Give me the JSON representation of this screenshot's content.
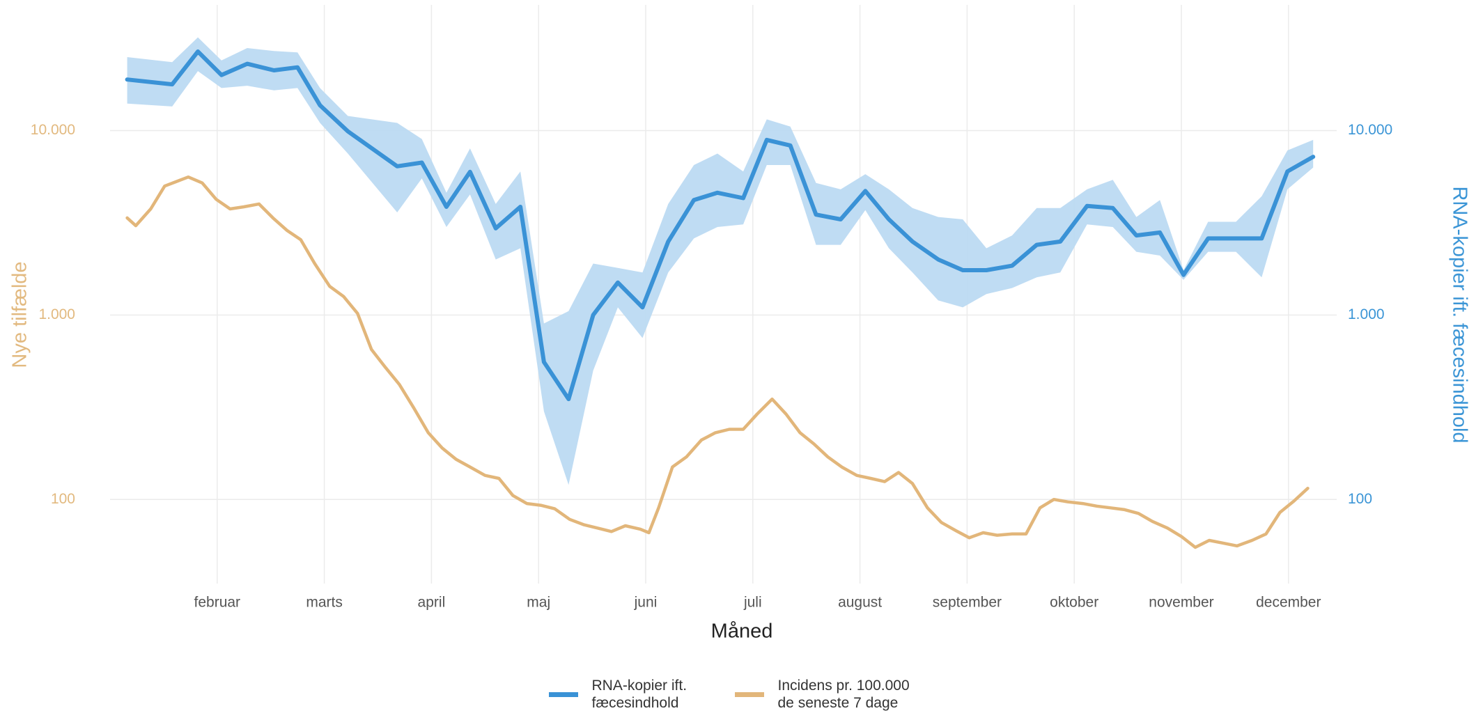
{
  "chart_data": {
    "type": "line",
    "x_label": "Måned",
    "y_label": "Nye tilfælde",
    "y2_label": "RNA-kopier ift. fæcesindhold",
    "log_scale": true,
    "grid": true,
    "legend": "bottom",
    "xlim": [
      1.0,
      12.45
    ],
    "xticks": [
      {
        "value": 2,
        "label": "februar"
      },
      {
        "value": 3,
        "label": "marts"
      },
      {
        "value": 4,
        "label": "april"
      },
      {
        "value": 5,
        "label": "maj"
      },
      {
        "value": 6,
        "label": "juni"
      },
      {
        "value": 7,
        "label": "juli"
      },
      {
        "value": 8,
        "label": "august"
      },
      {
        "value": 9,
        "label": "september"
      },
      {
        "value": 10,
        "label": "oktober"
      },
      {
        "value": 11,
        "label": "november"
      },
      {
        "value": 12,
        "label": "december"
      }
    ],
    "ylim": [
      35,
      48000
    ],
    "yticks": [
      100,
      {
        "value": 1000,
        "label": "1.000"
      },
      {
        "value": 10000,
        "label": "10.000"
      }
    ],
    "y2lim": [
      35,
      48000
    ],
    "y2ticks": [
      100,
      {
        "value": 1000,
        "label": "1.000"
      },
      {
        "value": 10000,
        "label": "10.000"
      }
    ],
    "y_color": "#e2b97f",
    "y2_color": "#3b95d6",
    "band_color": "#bcdaf2",
    "series": [
      {
        "name": "RNA-kopier ift. fæcesindhold",
        "color": "#3a92d6",
        "axis": "y2",
        "x": [
          1.16,
          1.58,
          1.82,
          2.04,
          2.28,
          2.53,
          2.75,
          2.96,
          3.22,
          3.68,
          3.91,
          4.14,
          4.36,
          4.6,
          4.83,
          5.05,
          5.28,
          5.51,
          5.74,
          5.97,
          6.21,
          6.45,
          6.67,
          6.91,
          7.13,
          7.35,
          7.59,
          7.82,
          8.05,
          8.27,
          8.49,
          8.73,
          8.96,
          9.18,
          9.42,
          9.65,
          9.87,
          10.12,
          10.36,
          10.58,
          10.8,
          11.02,
          11.25,
          11.51,
          11.75,
          11.99,
          12.23
        ],
        "values": [
          18900,
          17800,
          26800,
          20000,
          23000,
          21200,
          22000,
          13700,
          9900,
          6400,
          6700,
          3860,
          5970,
          2950,
          3860,
          556,
          350,
          1000,
          1500,
          1100,
          2500,
          4200,
          4600,
          4300,
          8900,
          8300,
          3500,
          3300,
          4700,
          3300,
          2500,
          2000,
          1750,
          1750,
          1850,
          2400,
          2500,
          3900,
          3800,
          2700,
          2800,
          1650,
          2600,
          2600,
          2600,
          6000,
          7200
        ],
        "lower": [
          14000,
          13500,
          21000,
          17000,
          17500,
          16500,
          17000,
          11000,
          7500,
          3600,
          5500,
          3000,
          4500,
          2000,
          2300,
          300,
          120,
          500,
          1100,
          750,
          1700,
          2600,
          3000,
          3100,
          6500,
          6500,
          2400,
          2400,
          3700,
          2300,
          1700,
          1200,
          1100,
          1300,
          1400,
          1600,
          1700,
          3100,
          3000,
          2200,
          2100,
          1550,
          2200,
          2200,
          1600,
          4800,
          6300
        ],
        "upper": [
          25000,
          23500,
          32000,
          24000,
          28000,
          27000,
          26500,
          17000,
          12000,
          11000,
          9000,
          4600,
          8000,
          4000,
          6000,
          900,
          1050,
          1900,
          1800,
          1700,
          4000,
          6500,
          7500,
          6000,
          11500,
          10500,
          5200,
          4800,
          5800,
          4800,
          3800,
          3400,
          3300,
          2300,
          2700,
          3800,
          3800,
          4800,
          5400,
          3400,
          4200,
          1750,
          3200,
          3200,
          4400,
          7800,
          8900
        ]
      },
      {
        "name": "Incidens pr. 100.000 de seneste 7 dage",
        "color": "#e2b67a",
        "axis": "y",
        "x": [
          1.16,
          1.24,
          1.38,
          1.51,
          1.73,
          1.86,
          1.99,
          2.12,
          2.25,
          2.39,
          2.52,
          2.65,
          2.78,
          2.91,
          3.05,
          3.18,
          3.31,
          3.44,
          3.57,
          3.7,
          3.84,
          3.97,
          4.1,
          4.23,
          4.36,
          4.5,
          4.63,
          4.76,
          4.89,
          5.02,
          5.15,
          5.29,
          5.42,
          5.55,
          5.68,
          5.81,
          5.95,
          6.03,
          6.12,
          6.25,
          6.38,
          6.52,
          6.65,
          6.78,
          6.91,
          7.04,
          7.18,
          7.31,
          7.44,
          7.57,
          7.7,
          7.83,
          7.97,
          8.1,
          8.23,
          8.36,
          8.49,
          8.63,
          8.76,
          8.89,
          9.02,
          9.15,
          9.28,
          9.42,
          9.55,
          9.68,
          9.81,
          9.94,
          10.08,
          10.21,
          10.34,
          10.47,
          10.6,
          10.73,
          10.87,
          11.0,
          11.13,
          11.26,
          11.39,
          11.52,
          11.66,
          11.79,
          11.92,
          12.05,
          12.18
        ],
        "values": [
          3360,
          3050,
          3760,
          5000,
          5600,
          5200,
          4240,
          3760,
          3860,
          4000,
          3360,
          2880,
          2560,
          1900,
          1430,
          1260,
          1020,
          650,
          520,
          420,
          310,
          230,
          190,
          165,
          150,
          135,
          130,
          105,
          95,
          93,
          89,
          78,
          73,
          70,
          67,
          72,
          69,
          66,
          90,
          150,
          170,
          210,
          230,
          240,
          240,
          290,
          350,
          290,
          230,
          200,
          170,
          150,
          135,
          130,
          125,
          140,
          122,
          90,
          75,
          68,
          62,
          66,
          64,
          65,
          65,
          90,
          100,
          97,
          95,
          92,
          90,
          88,
          84,
          76,
          70,
          63,
          55,
          60,
          58,
          56,
          60,
          65,
          85,
          98,
          115
        ]
      }
    ]
  }
}
